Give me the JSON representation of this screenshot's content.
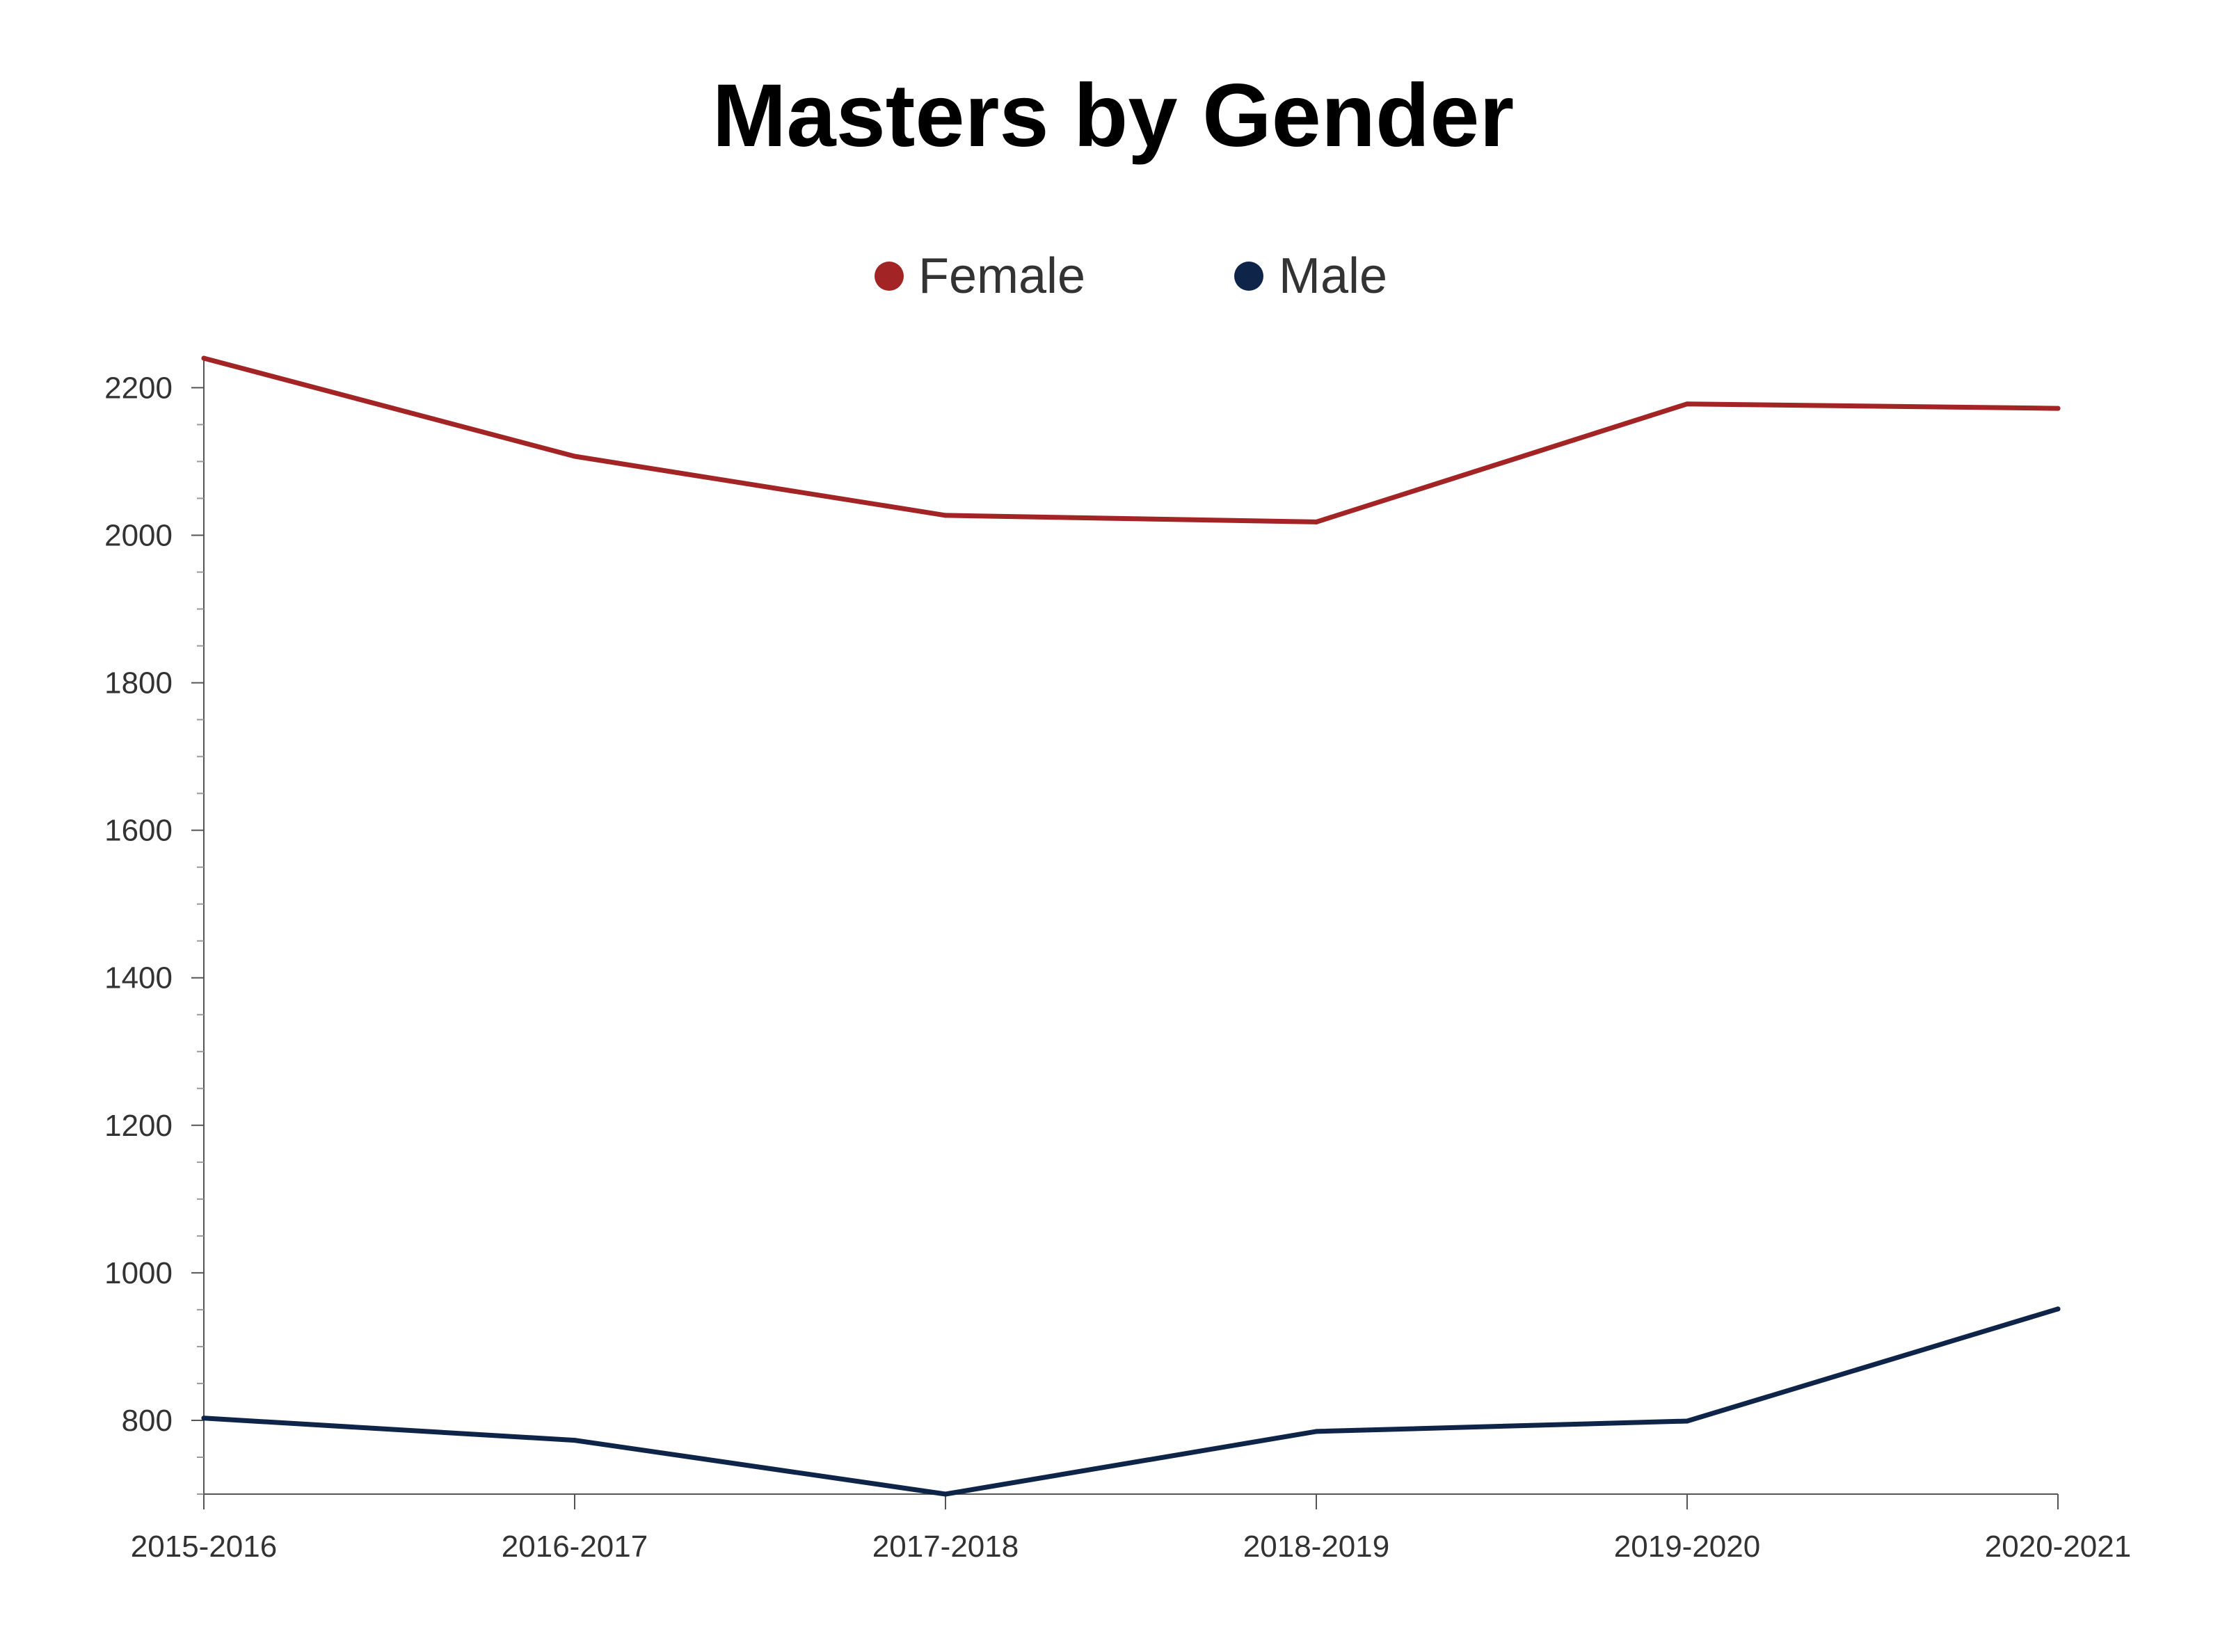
{
  "chart_data": {
    "type": "line",
    "title": "Masters by Gender",
    "xlabel": "",
    "ylabel": "",
    "categories": [
      "2015-2016",
      "2016-2017",
      "2017-2018",
      "2018-2019",
      "2019-2020",
      "2020-2021"
    ],
    "series": [
      {
        "name": "Female",
        "color": "#a32424",
        "values": [
          2240,
          2107,
          2027,
          2018,
          2178,
          2172
        ]
      },
      {
        "name": "Male",
        "color": "#0e2448",
        "values": [
          803,
          773,
          700,
          785,
          799,
          951
        ]
      }
    ],
    "ylim": [
      700,
      2240
    ],
    "yticks": [
      800,
      1000,
      1200,
      1400,
      1600,
      1800,
      2000,
      2200
    ],
    "ytick_labels": [
      "800",
      "1000",
      "1200",
      "1400",
      "1600",
      "1800",
      "2000",
      "2200"
    ],
    "minor_tick_step": 50,
    "grid": false,
    "legend_position": "top-center"
  }
}
